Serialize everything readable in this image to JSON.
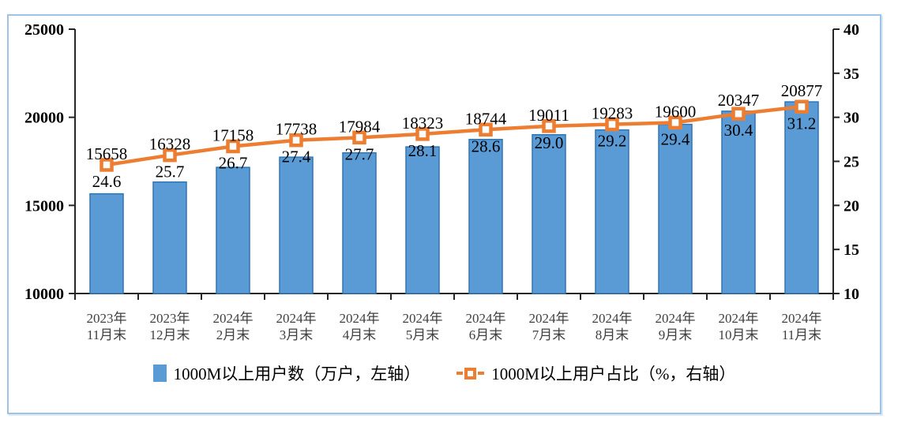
{
  "chart_data": {
    "type": "bar",
    "subtype": "bar+line-combo",
    "title": "",
    "categories": [
      [
        "2023年",
        "11月末"
      ],
      [
        "2023年",
        "12月末"
      ],
      [
        "2024年",
        "2月末"
      ],
      [
        "2024年",
        "3月末"
      ],
      [
        "2024年",
        "4月末"
      ],
      [
        "2024年",
        "5月末"
      ],
      [
        "2024年",
        "6月末"
      ],
      [
        "2024年",
        "7月末"
      ],
      [
        "2024年",
        "8月末"
      ],
      [
        "2024年",
        "9月末"
      ],
      [
        "2024年",
        "10月末"
      ],
      [
        "2024年",
        "11月末"
      ]
    ],
    "series": [
      {
        "name": "1000M以上用户数（万户，左轴）",
        "type": "bar",
        "axis": "left",
        "values": [
          15658,
          16328,
          17158,
          17738,
          17984,
          18323,
          18744,
          19011,
          19283,
          19600,
          20347,
          20877
        ]
      },
      {
        "name": "1000M以上用户占比（%，右轴）",
        "type": "line",
        "axis": "right",
        "values": [
          24.6,
          25.7,
          26.7,
          27.4,
          27.7,
          28.1,
          28.6,
          29.0,
          29.2,
          29.4,
          30.4,
          31.2
        ]
      }
    ],
    "left_axis": {
      "min": 10000,
      "max": 25000,
      "ticks": [
        25000,
        20000,
        15000,
        10000
      ]
    },
    "right_axis": {
      "min": 10,
      "max": 40,
      "ticks": [
        40,
        35,
        30,
        25,
        20,
        15,
        10
      ]
    },
    "grid": false,
    "legend_position": "bottom",
    "data_labels": true
  },
  "colors": {
    "bar_fill": "#5B9BD5",
    "bar_border": "#2E75B6",
    "line_color": "#ED7D31",
    "marker_fill": "#FFFFFF",
    "axis_color": "#262626",
    "tick_label_color": "#000000",
    "category_label_color": "#404040",
    "data_label_color": "#000000",
    "frame_border": "#9DC3E6"
  }
}
